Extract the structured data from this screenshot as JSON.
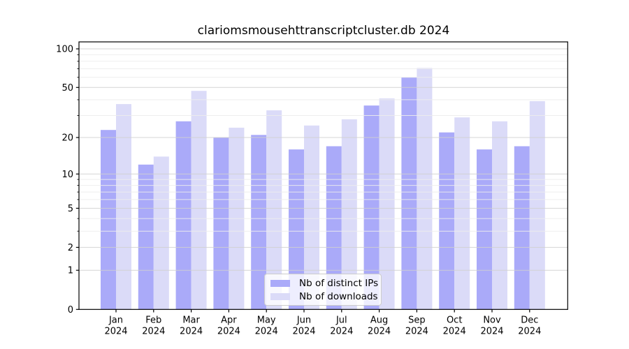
{
  "chart_data": {
    "type": "bar",
    "title": "clariomsmousehttranscriptcluster.db 2024",
    "categories": [
      "Jan",
      "Feb",
      "Mar",
      "Apr",
      "May",
      "Jun",
      "Jul",
      "Aug",
      "Sep",
      "Oct",
      "Nov",
      "Dec"
    ],
    "x_tick_second_line": "2024",
    "series": [
      {
        "name": "Nb of distinct IPs",
        "color": "#aaaaf9",
        "values": [
          23,
          12,
          27,
          20,
          21,
          16,
          17,
          36,
          60,
          22,
          16,
          17
        ]
      },
      {
        "name": "Nb of downloads",
        "color": "#dbdbf8",
        "values": [
          37,
          14,
          47,
          24,
          33,
          25,
          28,
          41,
          71,
          29,
          27,
          39
        ]
      }
    ],
    "y_axis": {
      "scale": "log1p",
      "ticks": [
        0,
        1,
        2,
        5,
        10,
        20,
        50,
        100
      ],
      "minor_ticks": [
        3,
        4,
        6,
        7,
        8,
        9,
        30,
        40,
        60,
        70,
        80,
        90
      ],
      "range": [
        0,
        113
      ]
    },
    "grid": "on",
    "legend_position": "lower center"
  },
  "colors": {
    "major_grid": "#d0d0d0",
    "minor_grid": "#ededed",
    "axis_frame": "#000000",
    "tick_text": "#000000",
    "legend_border": "#cccccc"
  }
}
